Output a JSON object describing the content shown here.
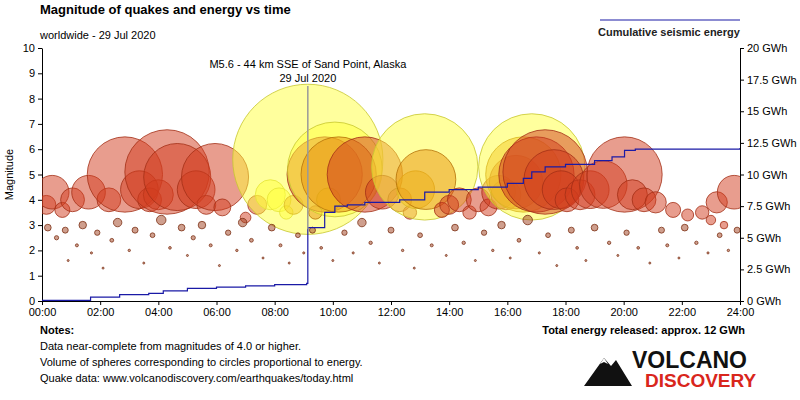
{
  "chart_data": {
    "type": "scatter",
    "title": "Magnitude of quakes and energy vs time",
    "subtitle": "worldwide - 29 Jul 2020",
    "y_label": "Magnitude",
    "xlim": [
      0,
      24
    ],
    "xticks": [
      {
        "value": 0,
        "label": "00:00"
      },
      {
        "value": 2,
        "label": "02:00"
      },
      {
        "value": 4,
        "label": "04:00"
      },
      {
        "value": 6,
        "label": "06:00"
      },
      {
        "value": 8,
        "label": "08:00"
      },
      {
        "value": 10,
        "label": "10:00"
      },
      {
        "value": 12,
        "label": "12:00"
      },
      {
        "value": 14,
        "label": "14:00"
      },
      {
        "value": 16,
        "label": "16:00"
      },
      {
        "value": 18,
        "label": "18:00"
      },
      {
        "value": 20,
        "label": "20:00"
      },
      {
        "value": 22,
        "label": "22:00"
      },
      {
        "value": 24,
        "label": "24:00"
      }
    ],
    "ylim": [
      0,
      10
    ],
    "yticks": [
      0,
      1,
      2,
      3,
      4,
      5,
      6,
      7,
      8,
      9,
      10
    ],
    "y2lim": [
      0,
      20
    ],
    "y2ticks": [
      {
        "value": 0,
        "label": "0 GWh"
      },
      {
        "value": 2.5,
        "label": "2.5 GWh"
      },
      {
        "value": 5,
        "label": "5 GWh"
      },
      {
        "value": 7.5,
        "label": "7.5 GWh"
      },
      {
        "value": 10,
        "label": "10 GWh"
      },
      {
        "value": 12.5,
        "label": "12.5 GWh"
      },
      {
        "value": 15,
        "label": "15 GWh"
      },
      {
        "value": 17.5,
        "label": "17.5 GWh"
      },
      {
        "value": 20,
        "label": "20 GWh"
      }
    ],
    "grid": false,
    "legend": "top-right",
    "series": [
      {
        "type": "scatter",
        "marker": "circle",
        "x": [
          0.15,
          0.35,
          0.7,
          1.05,
          1.6,
          2.3,
          2.85,
          3.35,
          3.7,
          4.0,
          4.3,
          4.65,
          5.3,
          5.65,
          5.95,
          6.2,
          7.0,
          7.4,
          7.85,
          8.15,
          8.4,
          8.65,
          9.14,
          9.4,
          9.72,
          9.85,
          10.07,
          10.2,
          11.1,
          11.7,
          12.3,
          12.65,
          12.85,
          13.16,
          13.2,
          13.75,
          14.0,
          14.35,
          14.7,
          15.0,
          15.35,
          15.7,
          15.95,
          16.3,
          16.55,
          16.84,
          17.0,
          17.3,
          17.6,
          17.85,
          18.05,
          18.5,
          18.85,
          19.3,
          20.03,
          20.3,
          20.7,
          21.1,
          21.7,
          22.2,
          22.7,
          23.0,
          23.2,
          23.45,
          23.8,
          0.2,
          0.5,
          0.8,
          0.9,
          1.2,
          1.4,
          1.7,
          1.9,
          2.1,
          2.4,
          2.6,
          3.0,
          3.2,
          3.5,
          3.8,
          4.1,
          4.4,
          4.8,
          5.0,
          5.2,
          5.5,
          5.8,
          6.1,
          6.4,
          6.7,
          6.9,
          7.2,
          7.6,
          7.9,
          8.2,
          8.5,
          8.8,
          9.0,
          9.3,
          9.6,
          10.0,
          10.4,
          10.7,
          11.0,
          11.3,
          11.6,
          12.0,
          12.4,
          12.8,
          13.0,
          13.4,
          13.9,
          14.2,
          14.5,
          14.9,
          15.2,
          15.5,
          15.8,
          16.1,
          16.4,
          16.7,
          17.1,
          17.4,
          17.7,
          18.2,
          18.4,
          18.7,
          19.0,
          19.5,
          19.8,
          20.1,
          20.5,
          20.9,
          21.3,
          21.5,
          21.9,
          22.1,
          22.5,
          22.9,
          23.3,
          23.6,
          23.9
        ],
        "values": [
          3.8,
          4.3,
          3.6,
          4.0,
          4.3,
          4.0,
          5.0,
          4.4,
          4.0,
          4.2,
          5.1,
          4.9,
          4.4,
          3.8,
          4.9,
          3.7,
          3.3,
          3.8,
          4.2,
          4.0,
          3.5,
          3.8,
          5.6,
          3.5,
          5.0,
          4.0,
          5.2,
          5.0,
          5.0,
          4.3,
          4.0,
          3.5,
          4.4,
          5.3,
          4.8,
          3.6,
          3.8,
          4.0,
          3.5,
          4.0,
          3.7,
          4.3,
          4.2,
          4.7,
          5.0,
          5.3,
          5.0,
          5.1,
          4.8,
          4.4,
          4.0,
          4.2,
          4.4,
          4.6,
          5.0,
          4.2,
          4.0,
          3.9,
          3.6,
          3.4,
          3.5,
          3.2,
          3.9,
          3.0,
          4.3,
          2.9,
          2.5,
          2.8,
          1.6,
          2.2,
          3.0,
          1.9,
          2.7,
          1.3,
          2.4,
          3.1,
          2.0,
          2.8,
          1.5,
          2.6,
          3.2,
          2.1,
          2.9,
          1.8,
          2.5,
          3.0,
          2.2,
          1.4,
          2.7,
          2.0,
          3.1,
          2.4,
          1.7,
          2.9,
          2.2,
          1.5,
          2.6,
          1.9,
          2.8,
          2.1,
          1.6,
          2.7,
          1.9,
          3.1,
          2.3,
          1.5,
          2.8,
          2.0,
          1.3,
          2.6,
          2.2,
          1.8,
          2.9,
          2.3,
          1.6,
          2.7,
          2.0,
          3.0,
          1.7,
          2.4,
          3.2,
          1.9,
          2.6,
          1.4,
          2.8,
          2.1,
          1.6,
          2.9,
          2.3,
          1.8,
          2.7,
          2.1,
          1.5,
          2.8,
          2.2,
          1.7,
          2.9,
          2.3,
          1.9,
          2.6,
          2.0,
          2.8
        ],
        "colors": [
          "#d23c1e",
          "#d23c1e",
          "#d23c1e",
          "#d23c1e",
          "#d23c1e",
          "#d23c1e",
          "#d23c1e",
          "#d23c1e",
          "#d23c1e",
          "#d23c1e",
          "#d23c1e",
          "#d23c1e",
          "#d23c1e",
          "#d23c1e",
          "#d23c1e",
          "#d23c1e",
          "#d23c1e",
          "#d23c1e",
          "#ffff3c",
          "#ffff3c",
          "#ffff3c",
          "#e8920a",
          "#ffff3c",
          "#e8920a",
          "#d23c1e",
          "#e8920a",
          "#ffff3c",
          "#e8920a",
          "#d23c1e",
          "#d23c1e",
          "#d23c1e",
          "#d23c1e",
          "#e8920a",
          "#ffff3c",
          "#e8920a",
          "#d23c1e",
          "#d23c1e",
          "#d23c1e",
          "#d23c1e",
          "#d23c1e",
          "#d23c1e",
          "#d23c1e",
          "#d23c1e",
          "#d23c1e",
          "#e8920a",
          "#ffff3c",
          "#d23c1e",
          "#d23c1e",
          "#d23c1e",
          "#d23c1e",
          "#d23c1e",
          "#d23c1e",
          "#d23c1e",
          "#d23c1e",
          "#d23c1e",
          "#d23c1e",
          "#d23c1e",
          "#d23c1e",
          "#d23c1e",
          "#d23c1e",
          "#d23c1e",
          "#d23c1e",
          "#d23c1e",
          "#d23c1e",
          "#d23c1e",
          "#a0401e",
          "#a0401e",
          "#a0401e",
          "#a0401e",
          "#a0401e",
          "#a0401e",
          "#a0401e",
          "#a0401e",
          "#a0401e",
          "#a0401e",
          "#a0401e",
          "#a0401e",
          "#a0401e",
          "#a0401e",
          "#a0401e",
          "#a0401e",
          "#a0401e",
          "#a0401e",
          "#a0401e",
          "#a0401e",
          "#a0401e",
          "#a0401e",
          "#a0401e",
          "#a0401e",
          "#a0401e",
          "#a0401e",
          "#a0401e",
          "#a0401e",
          "#a0401e",
          "#a0401e",
          "#a0401e",
          "#a0401e",
          "#a0401e",
          "#a0401e",
          "#a0401e",
          "#a0401e",
          "#a0401e",
          "#a0401e",
          "#a0401e",
          "#a0401e",
          "#a0401e",
          "#a0401e",
          "#a0401e",
          "#a0401e",
          "#a0401e",
          "#a0401e",
          "#a0401e",
          "#a0401e",
          "#a0401e",
          "#a0401e",
          "#a0401e",
          "#a0401e",
          "#a0401e",
          "#a0401e",
          "#a0401e",
          "#a0401e",
          "#a0401e",
          "#a0401e",
          "#a0401e",
          "#a0401e",
          "#a0401e",
          "#a0401e",
          "#a0401e",
          "#a0401e",
          "#a0401e",
          "#a0401e",
          "#a0401e",
          "#a0401e",
          "#a0401e",
          "#a0401e",
          "#a0401e",
          "#a0401e",
          "#a0401e",
          "#a0401e",
          "#a0401e",
          "#a0401e",
          "#a0401e"
        ]
      },
      {
        "name": "Cumulative seismic energy",
        "type": "line",
        "axis": "y2",
        "color": "#1a1aa6",
        "line_style": "step",
        "x": [
          0,
          1.67,
          2.67,
          3.67,
          4.17,
          5.0,
          6.0,
          7.0,
          8.0,
          9.1,
          9.14,
          9.72,
          10.07,
          10.5,
          11.1,
          12.3,
          13.16,
          14.0,
          15.0,
          16.0,
          16.55,
          16.84,
          17.3,
          18.0,
          19.0,
          19.6,
          20.03,
          20.4,
          24
        ],
        "values": [
          0.05,
          0.3,
          0.5,
          0.6,
          0.8,
          1.0,
          1.1,
          1.2,
          1.3,
          1.4,
          5.8,
          7.0,
          7.5,
          7.6,
          7.8,
          8.0,
          8.6,
          8.8,
          9.0,
          9.3,
          9.7,
          10.2,
          10.6,
          10.8,
          11.1,
          11.4,
          11.9,
          12.0,
          12.1
        ]
      }
    ],
    "annotations": [
      {
        "x": 9.14,
        "y": 5.6,
        "text": [
          "M5.6 - 44 km SSE of Sand Point, Alaska",
          "29 Jul 2020"
        ]
      }
    ],
    "notes": {
      "title": "Notes:",
      "lines": [
        "Data near-complete from magnitudes of 4.0 or higher.",
        "Volume of spheres corresponding to circles proportional to energy.",
        "Quake data: www.volcanodiscovery.com/earthquakes/today.html"
      ]
    },
    "total_energy": "Total energy released: approx. 12 GWh",
    "logo": [
      "VOLCANO",
      "DISCOVERY"
    ]
  }
}
